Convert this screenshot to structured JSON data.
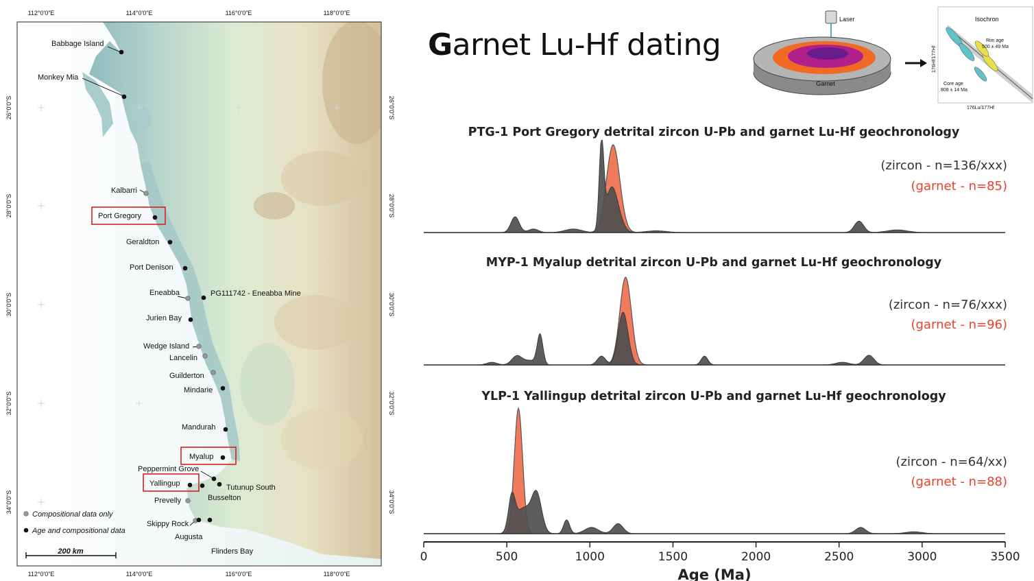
{
  "title": {
    "cap": "G",
    "rest": "arnet Lu-Hf dating"
  },
  "inset": {
    "laser_label": "Laser",
    "garnet_label": "Garnet",
    "isochron_title": "Isochron",
    "rim_age_label": "Rim age",
    "rim_age_value": "500 ± 49 Ma",
    "core_age_label": "Core age",
    "core_age_value": "808 ± 14 Ma",
    "x_axis_label": "176Lu/177Hf",
    "y_axis_label": "176Hf/177Hf"
  },
  "map": {
    "top_ticks": [
      "112°0'0\"E",
      "114°0'0\"E",
      "116°0'0\"E",
      "118°0'0\"E"
    ],
    "bottom_ticks": [
      "112°0'0\"E",
      "114°0'0\"E",
      "116°0'0\"E",
      "118°0'0\"E"
    ],
    "left_ticks": [
      "26°0'0\"S",
      "28°0'0\"S",
      "30°0'0\"S",
      "32°0'0\"S",
      "34°0'0\"S"
    ],
    "right_ticks": [
      "26°0'0\"S",
      "28°0'0\"S",
      "30°0'0\"S",
      "32°0'0\"S",
      "34°0'0\"S"
    ],
    "legend": {
      "grey": "Compositional data only",
      "black": "Age and compositional data"
    },
    "scale_label": "200 km",
    "colors": {
      "water": "#ffffff",
      "lowland": "#a9cccc",
      "upland": "#c9b08a",
      "highlight_box": "#d82020"
    },
    "sites": [
      {
        "name": "Babbage Island",
        "type": "black"
      },
      {
        "name": "Monkey Mia",
        "type": "black"
      },
      {
        "name": "Kalbarri",
        "type": "grey"
      },
      {
        "name": "Port Gregory",
        "type": "black",
        "highlight": true
      },
      {
        "name": "Geraldton",
        "type": "black"
      },
      {
        "name": "Port Denison",
        "type": "black"
      },
      {
        "name": "Eneabba",
        "type": "grey"
      },
      {
        "name": "PG111742 - Eneabba Mine",
        "type": "black"
      },
      {
        "name": "Jurien Bay",
        "type": "black"
      },
      {
        "name": "Wedge Island",
        "type": "grey"
      },
      {
        "name": "Lancelin",
        "type": "grey"
      },
      {
        "name": "Guilderton",
        "type": "grey"
      },
      {
        "name": "Mindarie",
        "type": "black"
      },
      {
        "name": "Mandurah",
        "type": "black"
      },
      {
        "name": "Myalup",
        "type": "black",
        "highlight": true
      },
      {
        "name": "Peppermint Grove",
        "type": "black"
      },
      {
        "name": "Yallingup",
        "type": "black",
        "highlight": true
      },
      {
        "name": "Tutunup South",
        "type": "black"
      },
      {
        "name": "Busselton",
        "type": "black"
      },
      {
        "name": "Prevelly",
        "type": "grey"
      },
      {
        "name": "Skippy Rock",
        "type": "grey"
      },
      {
        "name": "Augusta",
        "type": "black"
      },
      {
        "name": "Flinders Bay",
        "type": "black"
      }
    ]
  },
  "chart_data": {
    "type": "area",
    "xlabel": "Age (Ma)",
    "xlim": [
      0,
      3500
    ],
    "xticks": [
      0,
      500,
      1000,
      1500,
      2000,
      2500,
      3000,
      3500
    ],
    "colors": {
      "zircon": "#4f4f4f",
      "garnet": "#f07a5c",
      "garnet_text": "#e8412c",
      "zircon_text": "#333333"
    },
    "panels": [
      {
        "title": "PTG-1 Port Gregory detrital zircon U-Pb and garnet Lu-Hf geochronology",
        "zircon_label": "(zircon - n=136/xxx)",
        "garnet_label": "(garnet - n=85)",
        "zircon_peaks": [
          [
            550,
            0.18,
            25
          ],
          [
            660,
            0.04,
            30
          ],
          [
            900,
            0.04,
            50
          ],
          [
            1070,
            0.97,
            14
          ],
          [
            1130,
            0.5,
            35
          ],
          [
            1180,
            0.08,
            30
          ],
          [
            1400,
            0.02,
            60
          ],
          [
            2620,
            0.13,
            28
          ],
          [
            2850,
            0.03,
            60
          ]
        ],
        "garnet_peaks": [
          [
            1140,
            1.0,
            40
          ]
        ]
      },
      {
        "title": "MYP-1 Myalup detrital zircon U-Pb and garnet Lu-Hf geochronology",
        "zircon_label": "(zircon - n=76/xxx)",
        "garnet_label": "(garnet - n=96)",
        "zircon_peaks": [
          [
            410,
            0.03,
            30
          ],
          [
            560,
            0.1,
            30
          ],
          [
            700,
            0.34,
            17
          ],
          [
            640,
            0.05,
            40
          ],
          [
            1070,
            0.1,
            25
          ],
          [
            1200,
            0.6,
            30
          ],
          [
            1690,
            0.1,
            20
          ],
          [
            2520,
            0.03,
            40
          ],
          [
            2680,
            0.11,
            30
          ]
        ],
        "garnet_peaks": [
          [
            1215,
            1.0,
            35
          ]
        ]
      },
      {
        "title": "YLP-1 Yallingup detrital zircon U-Pb and garnet Lu-Hf geochronology",
        "zircon_label": "(zircon - n=64/xx)",
        "garnet_label": "(garnet - n=88)",
        "zircon_peaks": [
          [
            530,
            0.27,
            20
          ],
          [
            600,
            0.2,
            45
          ],
          [
            680,
            0.3,
            30
          ],
          [
            860,
            0.11,
            18
          ],
          [
            1010,
            0.05,
            40
          ],
          [
            1170,
            0.08,
            30
          ],
          [
            2630,
            0.05,
            30
          ],
          [
            2950,
            0.015,
            50
          ]
        ],
        "garnet_peaks": [
          [
            570,
            1.0,
            25
          ]
        ]
      }
    ]
  }
}
